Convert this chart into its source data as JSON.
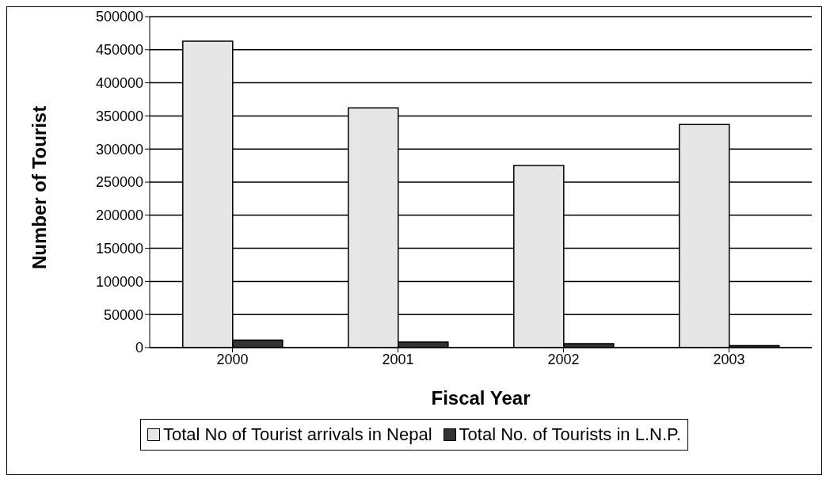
{
  "chart_data": {
    "type": "bar",
    "xlabel": "Fiscal Year",
    "ylabel": "Number of Tourist",
    "categories": [
      "2000",
      "2001",
      "2002",
      "2003"
    ],
    "series": [
      {
        "name": "Total No of Tourist arrivals in Nepal",
        "color": "#e6e6e6",
        "values": [
          463000,
          362000,
          275000,
          337000
        ]
      },
      {
        "name": "Total No. of  Tourists in L.N.P.",
        "color": "#333333",
        "values": [
          11300,
          8300,
          6000,
          3000
        ]
      }
    ],
    "ylim": [
      0,
      500000
    ],
    "yticks": [
      0,
      50000,
      100000,
      150000,
      200000,
      250000,
      300000,
      350000,
      400000,
      450000,
      500000
    ],
    "grid": "y",
    "legend": "bottom"
  }
}
